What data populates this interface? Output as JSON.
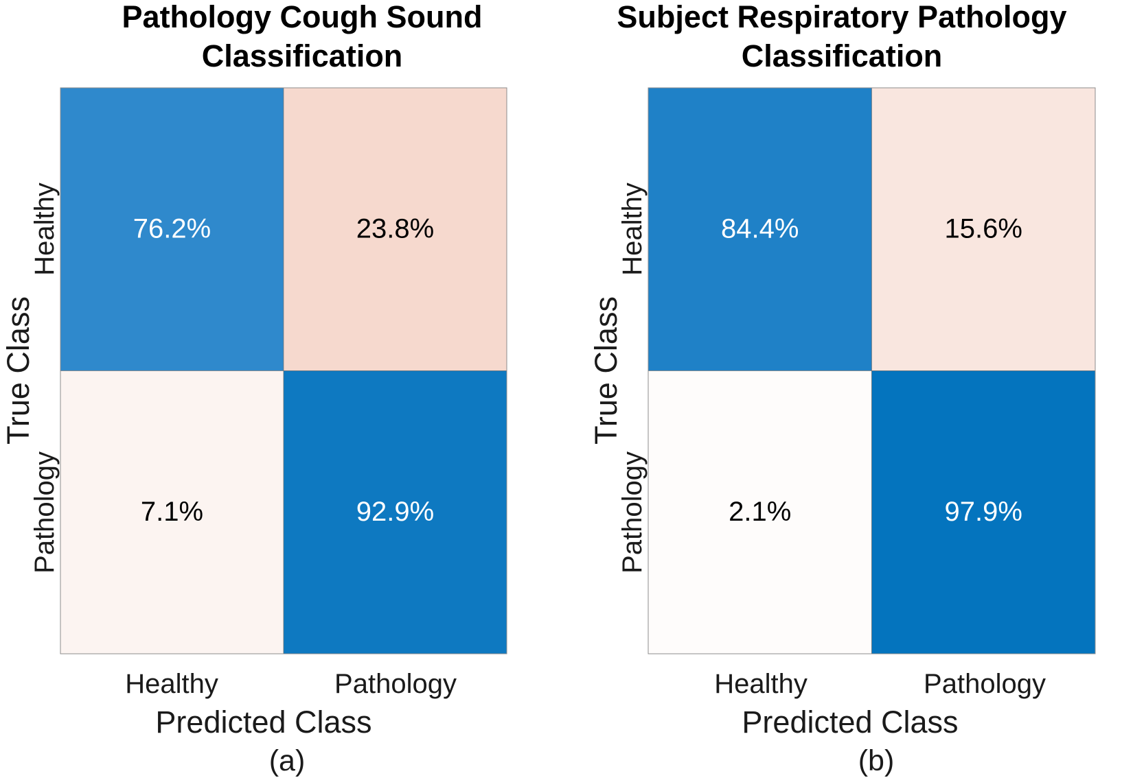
{
  "chart_data": [
    {
      "type": "heatmap",
      "title_lines": [
        "Pathology Cough Sound",
        "Classification"
      ],
      "xlabel": "Predicted Class",
      "ylabel": "True Class",
      "x_categories": [
        "Healthy",
        "Pathology"
      ],
      "y_categories": [
        "Healthy",
        "Pathology"
      ],
      "values": [
        [
          76.2,
          23.8
        ],
        [
          7.1,
          92.9
        ]
      ],
      "cell_labels": [
        [
          "76.2%",
          "23.8%"
        ],
        [
          "7.1%",
          "92.9%"
        ]
      ],
      "caption": "(a)"
    },
    {
      "type": "heatmap",
      "title_lines": [
        "Subject Respiratory Pathology",
        "Classification"
      ],
      "xlabel": "Predicted Class",
      "ylabel": "True Class",
      "x_categories": [
        "Healthy",
        "Pathology"
      ],
      "y_categories": [
        "Healthy",
        "Pathology"
      ],
      "values": [
        [
          84.4,
          15.6
        ],
        [
          2.1,
          97.9
        ]
      ],
      "cell_labels": [
        [
          "84.4%",
          "15.6%"
        ],
        [
          "2.1%",
          "97.9%"
        ]
      ],
      "caption": "(b)"
    }
  ],
  "colors": {
    "diagonal_high": "#0072bd",
    "offdiag_high": "#f6d9ce",
    "offdiag_low": "#fbf0ec",
    "light_text": "#ffffff",
    "dark_text": "#000000"
  }
}
